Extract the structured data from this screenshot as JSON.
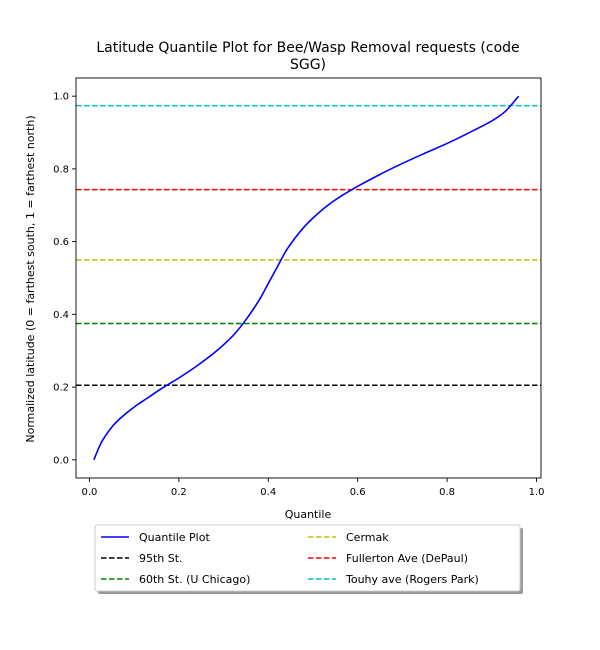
{
  "chart_data": {
    "type": "line",
    "title_lines": [
      "Latitude Quantile Plot for Bee/Wasp Removal  requests (code",
      "SGG)"
    ],
    "xlabel": "Quantile",
    "ylabel": "Normalized latitude (0 = farthest south, 1 = farthest north)",
    "xlim": [
      -0.03,
      1.01
    ],
    "ylim": [
      -0.05,
      1.05
    ],
    "xticks": [
      0.0,
      0.2,
      0.4,
      0.6,
      0.8,
      1.0
    ],
    "xtick_labels": [
      "0.0",
      "0.2",
      "0.4",
      "0.6",
      "0.8",
      "1.0"
    ],
    "yticks": [
      0.0,
      0.2,
      0.4,
      0.6,
      0.8,
      1.0
    ],
    "ytick_labels": [
      "0.0",
      "0.2",
      "0.4",
      "0.6",
      "0.8",
      "1.0"
    ],
    "grid": false,
    "legend_position": "below plot, two columns",
    "series": [
      {
        "name": "Quantile Plot",
        "color": "#0000ff",
        "style": "solid",
        "x": [
          0.01,
          0.02,
          0.03,
          0.05,
          0.07,
          0.1,
          0.13,
          0.16,
          0.2,
          0.24,
          0.28,
          0.32,
          0.35,
          0.38,
          0.4,
          0.42,
          0.44,
          0.46,
          0.48,
          0.5,
          0.53,
          0.56,
          0.6,
          0.65,
          0.7,
          0.75,
          0.8,
          0.85,
          0.9,
          0.93,
          0.96
        ],
        "y": [
          0.0,
          0.03,
          0.055,
          0.09,
          0.115,
          0.145,
          0.17,
          0.195,
          0.225,
          0.258,
          0.295,
          0.34,
          0.385,
          0.44,
          0.485,
          0.53,
          0.575,
          0.61,
          0.64,
          0.665,
          0.697,
          0.723,
          0.752,
          0.785,
          0.815,
          0.843,
          0.87,
          0.9,
          0.932,
          0.958,
          1.0
        ]
      }
    ],
    "reference_lines": [
      {
        "name": "95th St.",
        "y": 0.205,
        "color": "#000000",
        "style": "dashed"
      },
      {
        "name": "60th St. (U Chicago)",
        "y": 0.375,
        "color": "#008000",
        "style": "dashed"
      },
      {
        "name": "Cermak",
        "y": 0.55,
        "color": "#bfbf00",
        "style": "dashed"
      },
      {
        "name": "Fullerton Ave (DePaul)",
        "y": 0.743,
        "color": "#ff0000",
        "style": "dashed"
      },
      {
        "name": "Touhy ave (Rogers Park)",
        "y": 0.974,
        "color": "#00bfbf",
        "style": "dashed"
      }
    ],
    "legend_order_col1": [
      "Quantile Plot",
      "95th St.",
      "60th St. (U Chicago)"
    ],
    "legend_order_col2": [
      "Cermak",
      "Fullerton Ave (DePaul)",
      "Touhy ave (Rogers Park)"
    ]
  }
}
